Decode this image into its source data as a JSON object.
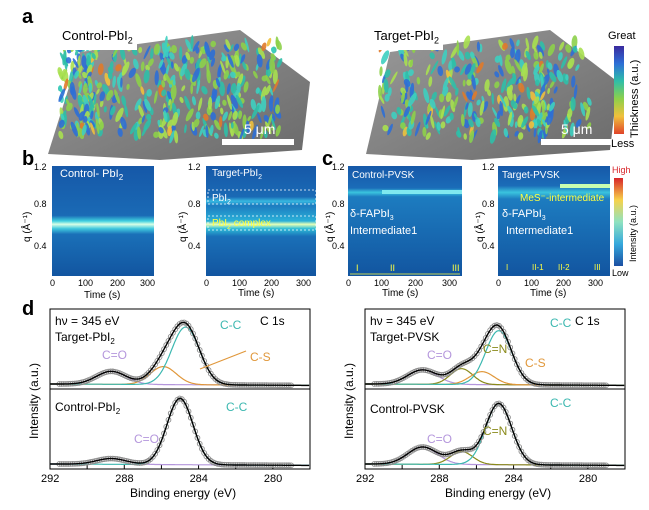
{
  "panels": {
    "a": "a",
    "b": "b",
    "c": "c",
    "d": "d"
  },
  "panel_a": {
    "left_label": "Control-PbI",
    "left_sub": "2",
    "right_label": "Target-PbI",
    "right_sub": "2",
    "scale_text": "5 μm",
    "colorbar_top": "Great",
    "colorbar_bottom": "Less",
    "colorbar_label": "Thickness (a.u.)"
  },
  "panel_b": {
    "left_title": "Control- PbI",
    "left_title_sub": "2",
    "right_title": "Target-PbI",
    "right_title_sub": "2",
    "pbi2_label": "PbI",
    "pbi2_sub": "2",
    "complex_label": "PbI",
    "complex_sub": "2",
    "complex_suffix": " complex",
    "ylabel": "q (Å⁻¹)",
    "xlabel": "Time (s)",
    "yticks": [
      "1.2",
      "0.8",
      "0.4"
    ],
    "xticks": [
      "0",
      "100",
      "200",
      "300"
    ]
  },
  "panel_c": {
    "left_title": "Control-PVSK",
    "right_title": "Target-PVSK",
    "delta_label": "δ-FAPbI",
    "delta_sub": "3",
    "intermediate_label": "Intermediate1",
    "mes_label": "MeS⁻-intermediate",
    "stages_left": [
      "I",
      "II",
      "III"
    ],
    "stages_right": [
      "I",
      "II-1",
      "II-2",
      "III"
    ],
    "ylabel": "q (Å⁻¹)",
    "xlabel": "Time (s)",
    "yticks": [
      "1.2",
      "0.8",
      "0.4"
    ],
    "xticks": [
      "0",
      "100",
      "200",
      "300"
    ],
    "colorbar_top": "High",
    "colorbar_bottom": "Low",
    "colorbar_label": "Intensity (a.u.)"
  },
  "panel_d": {
    "energy": "hν = 345 eV",
    "c1s": "C 1s",
    "left_top_sample": "Target-PbI",
    "left_top_sub": "2",
    "left_bottom_sample": "Control-PbI",
    "left_bottom_sub": "2",
    "right_top_sample": "Target-PVSK",
    "right_bottom_sample": "Control-PVSK",
    "peak_cc": "C-C",
    "peak_co": "C=O",
    "peak_cs": "C-S",
    "peak_cn": "C=N",
    "ylabel": "Intensity (a.u.)",
    "xlabel": "Binding energy (eV)",
    "xticks": [
      "292",
      "288",
      "284",
      "280"
    ],
    "colors": {
      "cc": "#3cb8b0",
      "co": "#b496dc",
      "cs": "#e0973a",
      "cn": "#8a8a1a",
      "fit": "#000000",
      "data": "#8c8c8c"
    }
  }
}
